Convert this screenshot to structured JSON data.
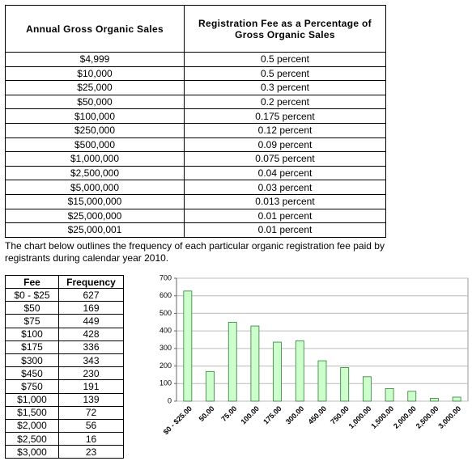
{
  "sales_table": {
    "headers": [
      "Annual Gross Organic Sales",
      "Registration Fee as a Percentage of Gross Organic Sales"
    ],
    "rows": [
      [
        "$4,999",
        "0.5 percent"
      ],
      [
        "$10,000",
        "0.5 percent"
      ],
      [
        "$25,000",
        "0.3 percent"
      ],
      [
        "$50,000",
        "0.2 percent"
      ],
      [
        "$100,000",
        "0.175 percent"
      ],
      [
        "$250,000",
        "0.12 percent"
      ],
      [
        "$500,000",
        "0.09 percent"
      ],
      [
        "$1,000,000",
        "0.075 percent"
      ],
      [
        "$2,500,000",
        "0.04 percent"
      ],
      [
        "$5,000,000",
        "0.03 percent"
      ],
      [
        "$15,000,000",
        "0.013 percent"
      ],
      [
        "$25,000,000",
        "0.01 percent"
      ],
      [
        "$25,000,001",
        "0.01 percent"
      ]
    ]
  },
  "paragraph": "The chart below outlines the frequency of each particular organic registration fee paid by registrants during calendar year 2010.",
  "fee_table": {
    "headers": [
      "Fee",
      "Frequency"
    ],
    "rows": [
      [
        "$0 - $25",
        627
      ],
      [
        "$50",
        169
      ],
      [
        "$75",
        449
      ],
      [
        "$100",
        428
      ],
      [
        "$175",
        336
      ],
      [
        "$300",
        343
      ],
      [
        "$450",
        230
      ],
      [
        "$750",
        191
      ],
      [
        "$1,000",
        139
      ],
      [
        "$1,500",
        72
      ],
      [
        "$2,000",
        56
      ],
      [
        "$2,500",
        16
      ],
      [
        "$3,000",
        23
      ]
    ]
  },
  "chart_data": {
    "type": "bar",
    "categories": [
      "$0 - $25.00",
      "50.00",
      "75.00",
      "100.00",
      "175.00",
      "300.00",
      "450.00",
      "750.00",
      "1,000.00",
      "1,500.00",
      "2,000.00",
      "2,500.00",
      "3,000.00"
    ],
    "values": [
      627,
      169,
      449,
      428,
      336,
      343,
      230,
      191,
      139,
      72,
      56,
      16,
      23
    ],
    "color": "#ccffcc",
    "ylim": [
      0,
      700
    ],
    "yticks": [
      0,
      100,
      200,
      300,
      400,
      500,
      600,
      700
    ],
    "grid": true
  }
}
